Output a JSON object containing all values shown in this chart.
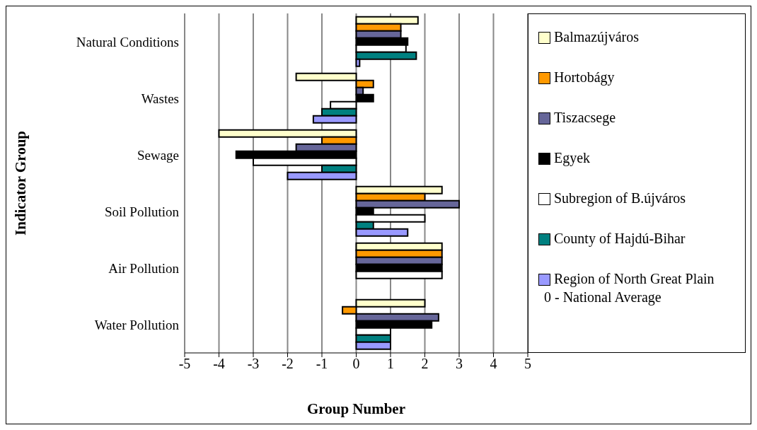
{
  "chart_data": {
    "type": "bar",
    "orientation": "horizontal",
    "xlabel": "Group Number",
    "ylabel": "Indicator Group",
    "categories": [
      "Natural Conditions",
      "Wastes",
      "Sewage",
      "Soil Pollution",
      "Air Pollution",
      "Water Pollution"
    ],
    "series": [
      {
        "name": "Balmazújváros",
        "color": "#ffffcc",
        "values": [
          1.8,
          -1.75,
          -4,
          2.5,
          2.5,
          2
        ]
      },
      {
        "name": "Hortobágy",
        "color": "#ff9900",
        "values": [
          1.3,
          0.5,
          -1,
          2,
          2.5,
          -0.4
        ]
      },
      {
        "name": "Tiszacsege",
        "color": "#666699",
        "values": [
          1.3,
          0.2,
          -1.75,
          3,
          2.5,
          2.4
        ]
      },
      {
        "name": "Egyek",
        "color": "#000000",
        "values": [
          1.5,
          0.5,
          -3.5,
          0.5,
          2.5,
          2.2
        ]
      },
      {
        "name": "Subregion of B.újváros",
        "color": "#ffffff",
        "values": [
          1.45,
          -0.75,
          -3,
          2,
          2.5,
          1
        ]
      },
      {
        "name": "County of Hajdú-Bihar",
        "color": "#008080",
        "values": [
          1.75,
          -1,
          -1,
          0.5,
          null,
          1
        ]
      },
      {
        "name": "Region of North Great Plain",
        "color": "#9999ff",
        "values": [
          0.1,
          -1.25,
          -2,
          1.5,
          null,
          1
        ]
      }
    ],
    "xlim": [
      -5,
      5
    ],
    "xticks": [
      -5,
      -4,
      -3,
      -2,
      -1,
      0,
      1,
      2,
      3,
      4,
      5
    ],
    "grid": "x",
    "legend": "right",
    "annotations": [
      "0 - National Average"
    ]
  }
}
